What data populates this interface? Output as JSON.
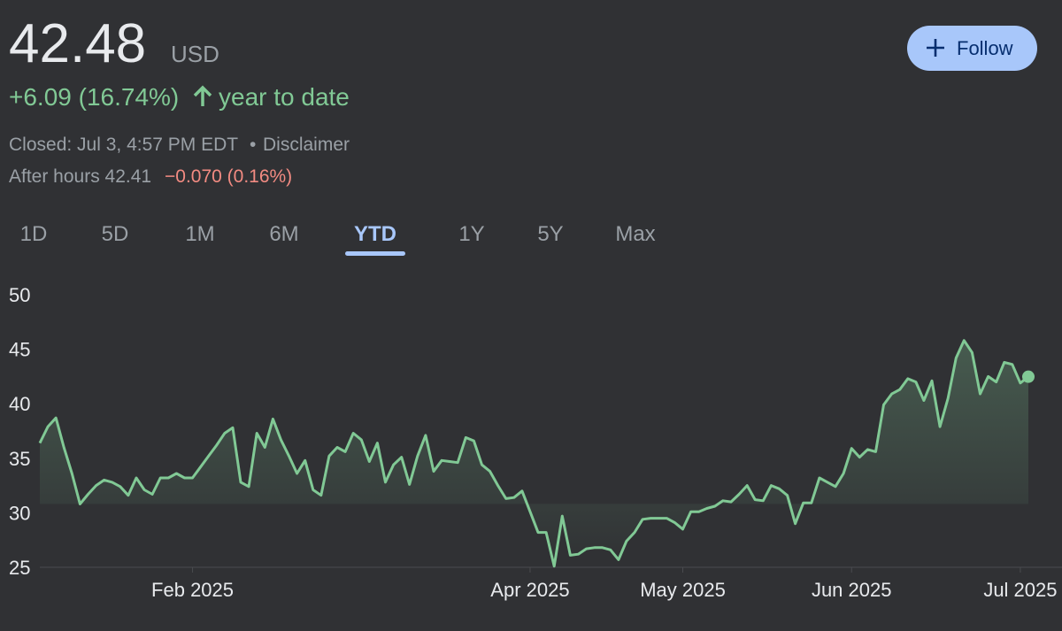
{
  "quote": {
    "price": "42.48",
    "currency": "USD",
    "change": "+6.09 (16.74%)",
    "period": "year to date",
    "closed": "Closed: Jul 3, 4:57 PM EDT",
    "separator": "•",
    "disclaimer": "Disclaimer",
    "after_hours": "After hours 42.41",
    "after_change": "−0.070 (0.16%)",
    "follow": "Follow"
  },
  "tabs": {
    "items": [
      "1D",
      "5D",
      "1M",
      "6M",
      "YTD",
      "1Y",
      "5Y",
      "Max"
    ],
    "selected": 4
  },
  "chart_data": {
    "type": "line",
    "color": "#81c995",
    "values": [
      36.4,
      37.9,
      38.7,
      36.0,
      33.6,
      30.8,
      31.7,
      32.5,
      33.0,
      32.8,
      32.4,
      31.6,
      33.2,
      32.1,
      31.7,
      33.2,
      33.2,
      33.6,
      33.2,
      33.2,
      34.2,
      35.2,
      36.2,
      37.3,
      37.8,
      32.8,
      32.4,
      37.3,
      36.0,
      38.6,
      36.7,
      35.2,
      33.6,
      34.8,
      32.1,
      31.6,
      35.2,
      36.0,
      35.6,
      37.3,
      36.7,
      34.7,
      36.4,
      32.8,
      34.4,
      35.1,
      32.6,
      35.2,
      37.1,
      33.8,
      34.8,
      34.7,
      34.6,
      36.9,
      36.6,
      34.4,
      33.8,
      32.5,
      31.3,
      31.4,
      32.0,
      30.1,
      28.2,
      28.2,
      25.1,
      29.7,
      26.1,
      26.2,
      26.7,
      26.8,
      26.8,
      26.6,
      25.7,
      27.4,
      28.2,
      29.4,
      29.5,
      29.5,
      29.5,
      29.1,
      28.5,
      30.1,
      30.1,
      30.4,
      30.6,
      31.1,
      31.0,
      31.7,
      32.5,
      31.2,
      31.1,
      32.5,
      32.2,
      31.6,
      29.0,
      30.9,
      30.9,
      33.2,
      32.8,
      32.4,
      33.6,
      35.9,
      35.1,
      35.8,
      35.6,
      39.9,
      40.9,
      41.3,
      42.3,
      42.0,
      40.3,
      42.1,
      37.9,
      40.5,
      44.2,
      45.8,
      44.7,
      40.9,
      42.5,
      42.0,
      43.8,
      43.6,
      41.9,
      42.48
    ],
    "xlim": [
      0,
      123
    ],
    "xticks": [
      {
        "value": 19,
        "label": "Feb 2025"
      },
      {
        "value": 61,
        "label": "Apr 2025"
      },
      {
        "value": 80,
        "label": "May 2025"
      },
      {
        "value": 101,
        "label": "Jun 2025"
      },
      {
        "value": 122,
        "label": "Jul 2025"
      }
    ],
    "ylim": [
      25,
      50
    ],
    "yticks": [
      25,
      30,
      35,
      40,
      45,
      50
    ]
  }
}
